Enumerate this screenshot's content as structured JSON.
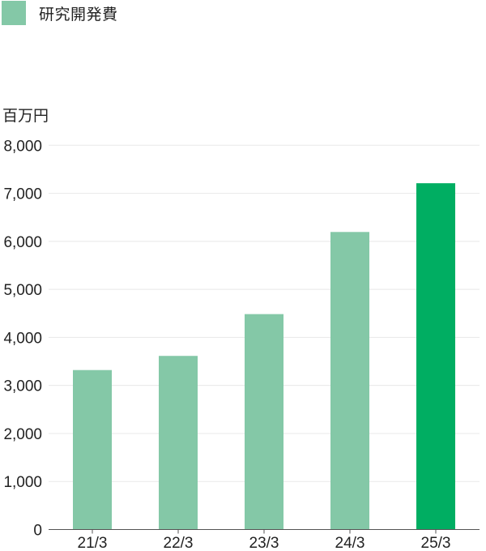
{
  "chart_data": {
    "type": "bar",
    "title": "",
    "legend": [
      {
        "name": "研究開発費",
        "color": "#84c8a7"
      }
    ],
    "legend_position": "top-left",
    "ylabel": "百万円",
    "xlabel": "",
    "categories": [
      "21/3",
      "22/3",
      "23/3",
      "24/3",
      "25/3"
    ],
    "values": [
      3320,
      3615,
      4485,
      6195,
      7210
    ],
    "bar_colors": [
      "#84c8a7",
      "#84c8a7",
      "#84c8a7",
      "#84c8a7",
      "#00ae62"
    ],
    "ylim": [
      0,
      8000
    ],
    "yticks": [
      0,
      1000,
      2000,
      3000,
      4000,
      5000,
      6000,
      7000,
      8000
    ],
    "ytick_labels": [
      "0",
      "1,000",
      "2,000",
      "3,000",
      "4,000",
      "5,000",
      "6,000",
      "7,000",
      "8,000"
    ],
    "grid": true
  }
}
